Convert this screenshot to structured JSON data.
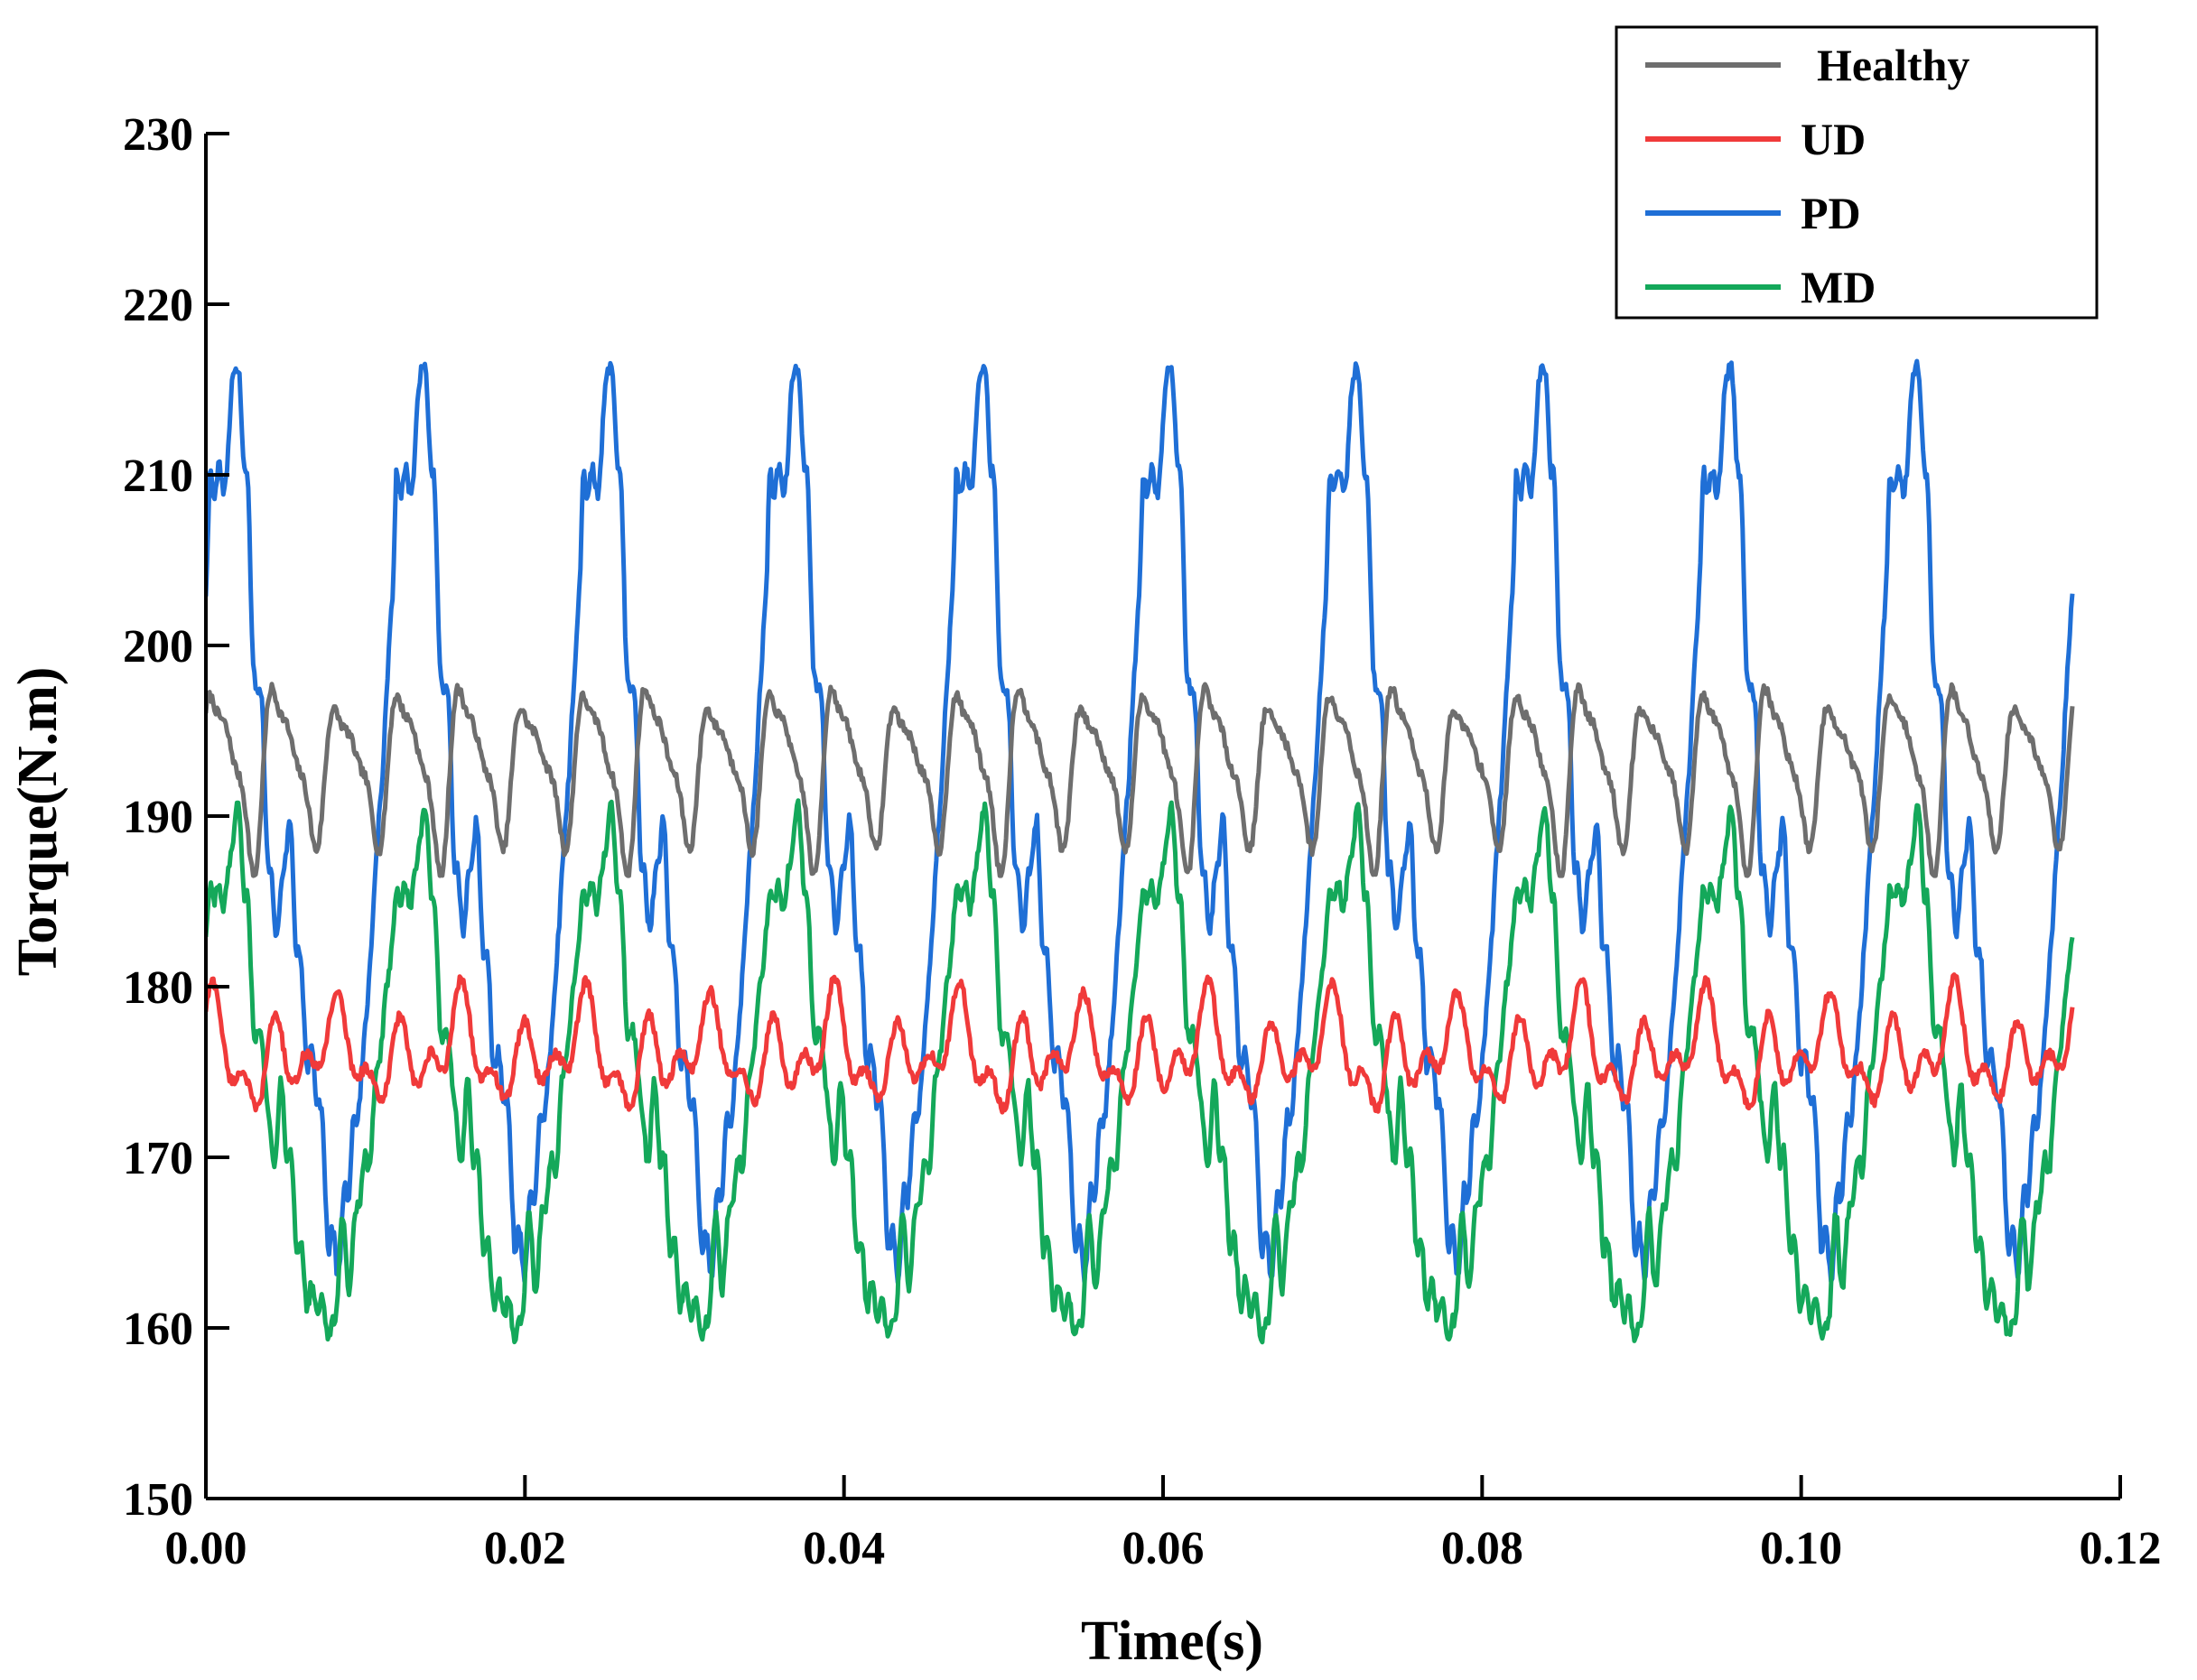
{
  "chart_data": {
    "type": "line",
    "title": "",
    "xlabel": "Time(s)",
    "ylabel": "Torque(N.m)",
    "xlim": [
      0.0,
      0.12
    ],
    "ylim": [
      150,
      230
    ],
    "xticks": [
      0.0,
      0.02,
      0.04,
      0.06,
      0.08,
      0.1,
      0.12
    ],
    "xtick_labels": [
      "0.00",
      "0.02",
      "0.04",
      "0.06",
      "0.08",
      "0.10",
      "0.12"
    ],
    "yticks": [
      150,
      160,
      170,
      180,
      190,
      200,
      210,
      220,
      230
    ],
    "ytick_labels": [
      "150",
      "160",
      "170",
      "180",
      "190",
      "200",
      "210",
      "220",
      "230"
    ],
    "grid": false,
    "legend_position": "top-right",
    "x_end": 0.117,
    "series": [
      {
        "name": "Healthy",
        "color": "#6e6e6e",
        "model": "ripple",
        "mean": 193,
        "base_period": 0.0039,
        "components": [
          {
            "f": 1,
            "a": 3.8,
            "p": 0.3
          },
          {
            "f": 2,
            "a": 1.6,
            "p": 1.1
          },
          {
            "f": 3,
            "a": 0.7,
            "p": 2.0
          }
        ],
        "envelope": {
          "period": 0.0117,
          "a": 0.18
        },
        "min": 186.5,
        "max": 200.0
      },
      {
        "name": "UD",
        "color": "#f03a3a",
        "model": "ripple",
        "mean": 176,
        "base_period": 0.0039,
        "components": [
          {
            "f": 1,
            "a": 1.8,
            "p": 0.8
          },
          {
            "f": 2,
            "a": 1.4,
            "p": 0.2
          },
          {
            "f": 0.5,
            "a": 1.1,
            "p": 1.7
          }
        ],
        "envelope": {
          "period": 0.0117,
          "a": 0.12
        },
        "min": 170.8,
        "max": 181.0
      },
      {
        "name": "PD",
        "color": "#1f6fd6",
        "model": "keyframes",
        "period": 0.0117,
        "keyframes": [
          [
            0.0,
            203.0
          ],
          [
            0.0003,
            210.0
          ],
          [
            0.0008,
            209.5
          ],
          [
            0.0013,
            210.0
          ],
          [
            0.0018,
            217.0
          ],
          [
            0.0025,
            211.0
          ],
          [
            0.003,
            199.0
          ],
          [
            0.0035,
            196.0
          ],
          [
            0.004,
            186.0
          ],
          [
            0.0045,
            184.0
          ],
          [
            0.0052,
            189.5
          ],
          [
            0.0057,
            183.0
          ],
          [
            0.0064,
            176.0
          ],
          [
            0.007,
            174.0
          ],
          [
            0.0078,
            165.0
          ],
          [
            0.0083,
            164.0
          ],
          [
            0.0088,
            168.0
          ],
          [
            0.0093,
            171.5
          ],
          [
            0.0098,
            175.0
          ],
          [
            0.0104,
            183.0
          ],
          [
            0.011,
            192.0
          ],
          [
            0.0117,
            203.0
          ]
        ],
        "noise": 1.0,
        "min": 160.8,
        "max": 217.6
      },
      {
        "name": "MD",
        "color": "#14a85a",
        "model": "keyframes",
        "period": 0.0117,
        "keyframes": [
          [
            0.0,
            183.0
          ],
          [
            0.0004,
            186.0
          ],
          [
            0.0009,
            185.0
          ],
          [
            0.0014,
            186.0
          ],
          [
            0.0019,
            190.5
          ],
          [
            0.0025,
            186.0
          ],
          [
            0.003,
            178.0
          ],
          [
            0.0036,
            176.0
          ],
          [
            0.0042,
            170.0
          ],
          [
            0.0047,
            173.5
          ],
          [
            0.0052,
            170.0
          ],
          [
            0.0058,
            165.0
          ],
          [
            0.0064,
            162.0
          ],
          [
            0.007,
            161.5
          ],
          [
            0.0075,
            160.5
          ],
          [
            0.008,
            159.5
          ],
          [
            0.0085,
            166.0
          ],
          [
            0.009,
            163.0
          ],
          [
            0.0096,
            168.0
          ],
          [
            0.0102,
            170.0
          ],
          [
            0.011,
            177.0
          ],
          [
            0.0117,
            183.0
          ]
        ],
        "noise": 0.9,
        "min": 155.2,
        "max": 191.0
      }
    ]
  }
}
